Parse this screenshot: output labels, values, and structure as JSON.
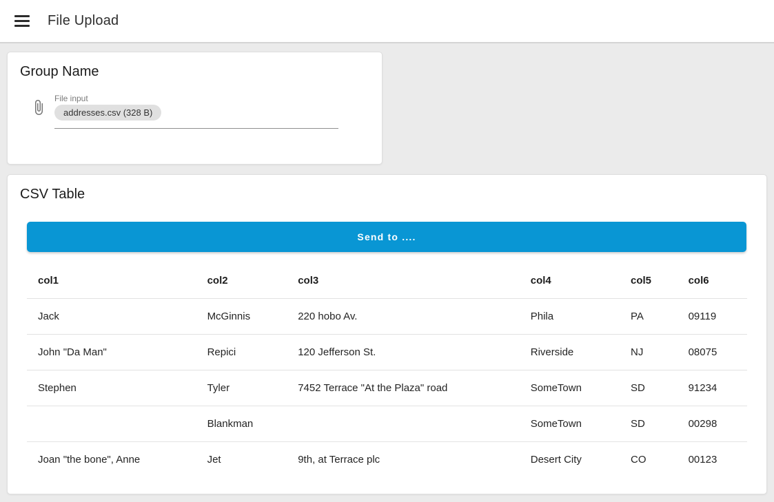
{
  "app_bar": {
    "title": "File Upload"
  },
  "upload_card": {
    "title": "Group Name",
    "file_input": {
      "label": "File input",
      "chip": "addresses.csv (328 B)"
    }
  },
  "table_card": {
    "title": "CSV Table",
    "button_label": "Send to ....",
    "accent_color": "#0996d4",
    "table": {
      "headers": [
        "col1",
        "col2",
        "col3",
        "col4",
        "col5",
        "col6"
      ],
      "rows": [
        [
          "Jack",
          "McGinnis",
          "220 hobo Av.",
          "Phila",
          "PA",
          "09119"
        ],
        [
          "John \"Da Man\"",
          "Repici",
          "120 Jefferson St.",
          "Riverside",
          "NJ",
          "08075"
        ],
        [
          "Stephen",
          "Tyler",
          "7452 Terrace \"At the Plaza\" road",
          "SomeTown",
          "SD",
          "91234"
        ],
        [
          "",
          "Blankman",
          "",
          "SomeTown",
          "SD",
          "00298"
        ],
        [
          "Joan \"the bone\", Anne",
          "Jet",
          "9th, at Terrace plc",
          "Desert City",
          "CO",
          "00123"
        ]
      ]
    }
  }
}
